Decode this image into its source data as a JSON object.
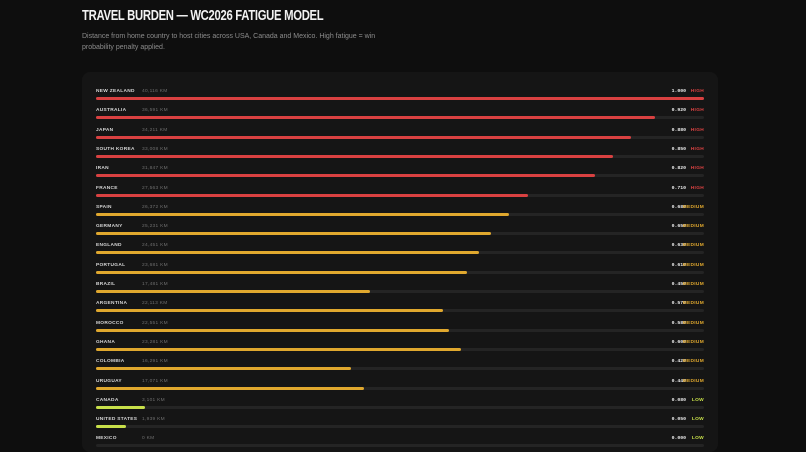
{
  "header": {
    "title": "TRAVEL BURDEN — WC2026 FATIGUE MODEL",
    "subtitle": "Distance from home country to host cities across USA, Canada and Mexico. High fatigue = win probability penalty applied."
  },
  "colors": {
    "high": "#d94141",
    "medium": "#e0a82e",
    "low": "#c8e04a"
  },
  "rows": [
    {
      "country": "NEW ZEALAND",
      "distance": "40,116 KM",
      "score": 1.0,
      "value": "1.000",
      "level": "HIGH",
      "tier": "high"
    },
    {
      "country": "AUSTRALIA",
      "distance": "36,591 KM",
      "score": 0.92,
      "value": "0.920",
      "level": "HIGH",
      "tier": "high"
    },
    {
      "country": "JAPAN",
      "distance": "34,211 KM",
      "score": 0.88,
      "value": "0.880",
      "level": "HIGH",
      "tier": "high"
    },
    {
      "country": "SOUTH KOREA",
      "distance": "33,008 KM",
      "score": 0.85,
      "value": "0.850",
      "level": "HIGH",
      "tier": "high"
    },
    {
      "country": "IRAN",
      "distance": "31,847 KM",
      "score": 0.82,
      "value": "0.820",
      "level": "HIGH",
      "tier": "high"
    },
    {
      "country": "FRANCE",
      "distance": "27,563 KM",
      "score": 0.71,
      "value": "0.710",
      "level": "HIGH",
      "tier": "high"
    },
    {
      "country": "SPAIN",
      "distance": "26,372 KM",
      "score": 0.68,
      "value": "0.680",
      "level": "MEDIUM",
      "tier": "medium"
    },
    {
      "country": "GERMANY",
      "distance": "25,231 KM",
      "score": 0.65,
      "value": "0.650",
      "level": "MEDIUM",
      "tier": "medium"
    },
    {
      "country": "ENGLAND",
      "distance": "24,451 KM",
      "score": 0.63,
      "value": "0.630",
      "level": "MEDIUM",
      "tier": "medium"
    },
    {
      "country": "PORTUGAL",
      "distance": "23,681 KM",
      "score": 0.61,
      "value": "0.610",
      "level": "MEDIUM",
      "tier": "medium"
    },
    {
      "country": "BRAZIL",
      "distance": "17,481 KM",
      "score": 0.45,
      "value": "0.450",
      "level": "MEDIUM",
      "tier": "medium"
    },
    {
      "country": "ARGENTINA",
      "distance": "22,113 KM",
      "score": 0.57,
      "value": "0.570",
      "level": "MEDIUM",
      "tier": "medium"
    },
    {
      "country": "MOROCCO",
      "distance": "22,551 KM",
      "score": 0.58,
      "value": "0.580",
      "level": "MEDIUM",
      "tier": "medium"
    },
    {
      "country": "GHANA",
      "distance": "23,281 KM",
      "score": 0.6,
      "value": "0.600",
      "level": "MEDIUM",
      "tier": "medium"
    },
    {
      "country": "COLOMBIA",
      "distance": "16,291 KM",
      "score": 0.42,
      "value": "0.420",
      "level": "MEDIUM",
      "tier": "medium"
    },
    {
      "country": "URUGUAY",
      "distance": "17,071 KM",
      "score": 0.44,
      "value": "0.440",
      "level": "MEDIUM",
      "tier": "medium"
    },
    {
      "country": "CANADA",
      "distance": "3,101 KM",
      "score": 0.08,
      "value": "0.080",
      "level": "LOW",
      "tier": "low"
    },
    {
      "country": "UNITED STATES",
      "distance": "1,939 KM",
      "score": 0.05,
      "value": "0.050",
      "level": "LOW",
      "tier": "low"
    },
    {
      "country": "MEXICO",
      "distance": "0 KM",
      "score": 0.0,
      "value": "0.000",
      "level": "LOW",
      "tier": "low"
    }
  ]
}
